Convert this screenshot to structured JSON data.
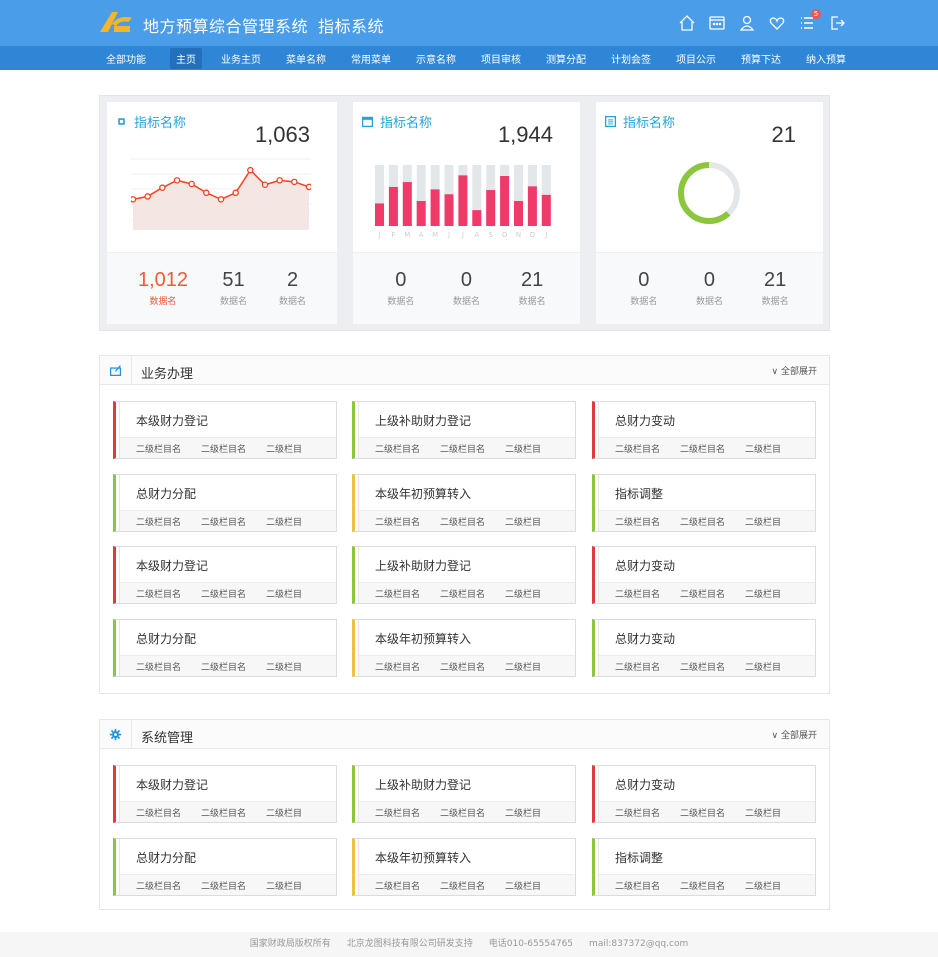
{
  "header": {
    "title": "地方预算综合管理系统",
    "subtitle": "指标系统",
    "notification_count": "5",
    "icons": [
      "home-icon",
      "message-icon",
      "user-icon",
      "heart-icon",
      "list-icon",
      "logout-icon"
    ]
  },
  "nav": {
    "items": [
      "全部功能",
      "主页",
      "业务主页",
      "菜单名称",
      "常用菜单",
      "示意名称",
      "项目审核",
      "测算分配",
      "计划会签",
      "项目公示",
      "预算下达",
      "纳入预算"
    ],
    "active": 1
  },
  "stats": [
    {
      "title": "指标名称",
      "icon": "command-icon",
      "total": "1,063",
      "metrics": [
        {
          "n": "1,012",
          "l": "数据名",
          "highlight": true
        },
        {
          "n": "51",
          "l": "数据名"
        },
        {
          "n": "2",
          "l": "数据名"
        }
      ]
    },
    {
      "title": "指标名称",
      "icon": "calendar-icon",
      "total": "1,944",
      "metrics": [
        {
          "n": "0",
          "l": "数据名"
        },
        {
          "n": "0",
          "l": "数据名"
        },
        {
          "n": "21",
          "l": "数据名"
        }
      ]
    },
    {
      "title": "指标名称",
      "icon": "list-box-icon",
      "total": "21",
      "metrics": [
        {
          "n": "0",
          "l": "数据名"
        },
        {
          "n": "0",
          "l": "数据名"
        },
        {
          "n": "21",
          "l": "数据名"
        }
      ]
    }
  ],
  "chart_data": [
    {
      "type": "line",
      "values": [
        42,
        46,
        58,
        68,
        63,
        51,
        42,
        51,
        82,
        62,
        68,
        66,
        59
      ],
      "color": "#f5401e"
    },
    {
      "type": "bar",
      "categories": [
        "J",
        "F",
        "M",
        "A",
        "M",
        "J",
        "J",
        "A",
        "S",
        "O",
        "N",
        "D",
        "J"
      ],
      "values": [
        0.37,
        0.64,
        0.72,
        0.41,
        0.6,
        0.52,
        0.83,
        0.26,
        0.59,
        0.82,
        0.41,
        0.65,
        0.51
      ],
      "ylim": [
        0,
        1
      ],
      "color": "#f03a6a"
    },
    {
      "type": "pie",
      "values": [
        0.62,
        0.38
      ],
      "colors": [
        "#8cc63f",
        "#e4e7ea"
      ]
    }
  ],
  "sections": [
    {
      "title": "业务办理",
      "icon": "edit-window-icon",
      "expand": "全部展开",
      "cards": [
        {
          "t": "本级财力登记",
          "c": "#e23a3a"
        },
        {
          "t": "上级补助财力登记",
          "c": "#8cc63f"
        },
        {
          "t": "总财力变动",
          "c": "#e23a3a"
        },
        {
          "t": "总财力分配",
          "c": "#8cc63f"
        },
        {
          "t": "本级年初预算转入",
          "c": "#f0c040"
        },
        {
          "t": "指标调整",
          "c": "#8cc63f"
        },
        {
          "t": "本级财力登记",
          "c": "#e23a3a"
        },
        {
          "t": "上级补助财力登记",
          "c": "#8cc63f"
        },
        {
          "t": "总财力变动",
          "c": "#e23a3a"
        },
        {
          "t": "总财力分配",
          "c": "#8cc63f"
        },
        {
          "t": "本级年初预算转入",
          "c": "#f0c040"
        },
        {
          "t": "总财力变动",
          "c": "#8cc63f"
        }
      ]
    },
    {
      "title": "系统管理",
      "icon": "gear-icon",
      "expand": "全部展开",
      "cards": [
        {
          "t": "本级财力登记",
          "c": "#e23a3a"
        },
        {
          "t": "上级补助财力登记",
          "c": "#8cc63f"
        },
        {
          "t": "总财力变动",
          "c": "#e23a3a"
        },
        {
          "t": "总财力分配",
          "c": "#8cc63f"
        },
        {
          "t": "本级年初预算转入",
          "c": "#f0c040"
        },
        {
          "t": "指标调整",
          "c": "#8cc63f"
        }
      ]
    }
  ],
  "sub_items": [
    "二级栏目名",
    "二级栏目名",
    "二级栏目"
  ],
  "footer": [
    "国家财政局版权所有",
    "北京龙图科技有限公司研发支持",
    "电话010-65554765",
    "mail:837372@qq.com"
  ]
}
